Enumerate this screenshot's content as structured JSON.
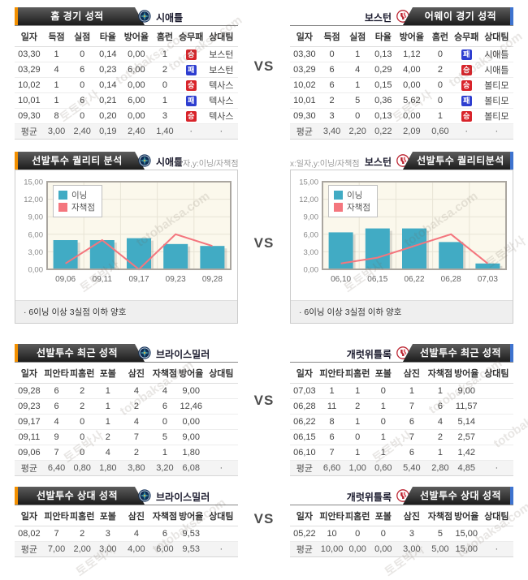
{
  "page": {
    "vs": "VS"
  },
  "watermark": {
    "kr": "토토박사",
    "en": "totobaksa.com"
  },
  "badges": {
    "win": "승",
    "loss": "패"
  },
  "avg_label": "평균",
  "stat_headers": [
    "일자",
    "득점",
    "실점",
    "타율",
    "방어율",
    "홈런",
    "승무패",
    "상대팀"
  ],
  "pitcher_headers": [
    "일자",
    "피안타",
    "피홈런",
    "포볼",
    "삼진",
    "자책점",
    "방어율",
    "상대팀"
  ],
  "colors": {
    "accent_left": "#f39000",
    "accent_right": "#3e73cf",
    "win_badge": "#d8232a",
    "loss_badge": "#2e3ed0",
    "bar": "#41abc4",
    "line": "#f4767e"
  },
  "sections": [
    {
      "left": {
        "title": "홈 경기 성적",
        "team": "시애틀",
        "headers": "stat_headers",
        "rows": [
          [
            "03,30",
            "1",
            "0",
            "0,14",
            "0,00",
            "1",
            "승",
            "보스턴"
          ],
          [
            "03,29",
            "4",
            "6",
            "0,23",
            "6,00",
            "2",
            "패",
            "보스턴"
          ],
          [
            "10,02",
            "1",
            "0",
            "0,14",
            "0,00",
            "0",
            "승",
            "텍사스"
          ],
          [
            "10,01",
            "1",
            "6",
            "0,21",
            "6,00",
            "1",
            "패",
            "텍사스"
          ],
          [
            "09,30",
            "8",
            "0",
            "0,20",
            "0,00",
            "3",
            "승",
            "텍사스"
          ]
        ],
        "avg": [
          "평균",
          "3,00",
          "2,40",
          "0,19",
          "2,40",
          "1,40",
          "·",
          "·"
        ]
      },
      "right": {
        "title": "어웨이 경기 성적",
        "team": "보스턴",
        "headers": "stat_headers",
        "rows": [
          [
            "03,30",
            "0",
            "1",
            "0,13",
            "1,12",
            "0",
            "패",
            "시애틀"
          ],
          [
            "03,29",
            "6",
            "4",
            "0,29",
            "4,00",
            "2",
            "승",
            "시애틀"
          ],
          [
            "10,02",
            "6",
            "1",
            "0,15",
            "0,00",
            "0",
            "승",
            "볼티모"
          ],
          [
            "10,01",
            "2",
            "5",
            "0,36",
            "5,62",
            "0",
            "패",
            "볼티모"
          ],
          [
            "09,30",
            "3",
            "0",
            "0,13",
            "0,00",
            "1",
            "승",
            "볼티모"
          ]
        ],
        "avg": [
          "평균",
          "3,40",
          "2,20",
          "0,22",
          "2,09",
          "0,60",
          "·",
          "·"
        ]
      }
    },
    {
      "left": {
        "title": "선발투수 퀄리티 분석",
        "team": "시애틀",
        "axis_note": "x:일자,y:이닝/자책점",
        "note": "·  6이닝 이상 3실점 이하 양호"
      },
      "right": {
        "title": "선발투수 퀄리티분석",
        "team": "보스턴",
        "axis_note": "x:일자,y:이닝/자책점",
        "note": "·  6이닝 이상 3실점 이하 양호"
      }
    },
    {
      "left": {
        "title": "선발투수 최근 성적",
        "team": "브라이스밀러",
        "headers": "pitcher_headers",
        "rows": [
          [
            "09,28",
            "6",
            "2",
            "1",
            "4",
            "4",
            "9,00",
            ""
          ],
          [
            "09,23",
            "6",
            "2",
            "1",
            "2",
            "6",
            "12,46",
            ""
          ],
          [
            "09,17",
            "4",
            "0",
            "1",
            "4",
            "0",
            "0,00",
            ""
          ],
          [
            "09,11",
            "9",
            "0",
            "2",
            "7",
            "5",
            "9,00",
            ""
          ],
          [
            "09,06",
            "7",
            "0",
            "4",
            "2",
            "1",
            "1,80",
            ""
          ]
        ],
        "avg": [
          "평균",
          "6,40",
          "0,80",
          "1,80",
          "3,80",
          "3,20",
          "6,08",
          "·"
        ]
      },
      "right": {
        "title": "선발투수 최근 성적",
        "team": "개럿위틀록",
        "headers": "pitcher_headers",
        "rows": [
          [
            "07,03",
            "1",
            "1",
            "0",
            "1",
            "1",
            "9,00",
            ""
          ],
          [
            "06,28",
            "11",
            "2",
            "1",
            "7",
            "6",
            "11,57",
            ""
          ],
          [
            "06,22",
            "8",
            "1",
            "0",
            "6",
            "4",
            "5,14",
            ""
          ],
          [
            "06,15",
            "6",
            "0",
            "1",
            "7",
            "2",
            "2,57",
            ""
          ],
          [
            "06,10",
            "7",
            "1",
            "1",
            "6",
            "1",
            "1,42",
            ""
          ]
        ],
        "avg": [
          "평균",
          "6,60",
          "1,00",
          "0,60",
          "5,40",
          "2,80",
          "4,85",
          "·"
        ]
      }
    },
    {
      "left": {
        "title": "선발투수 상대 성적",
        "team": "브라이스밀러",
        "headers": "pitcher_headers",
        "rows": [
          [
            "08,02",
            "7",
            "2",
            "3",
            "4",
            "6",
            "9,53",
            ""
          ]
        ],
        "avg": [
          "평균",
          "7,00",
          "2,00",
          "3,00",
          "4,00",
          "6,00",
          "9,53",
          "·"
        ]
      },
      "right": {
        "title": "선발투수 상대 성적",
        "team": "개럿위틀록",
        "headers": "pitcher_headers",
        "rows": [
          [
            "05,22",
            "10",
            "0",
            "0",
            "3",
            "5",
            "15,00",
            ""
          ]
        ],
        "avg": [
          "평균",
          "10,00",
          "0,00",
          "0,00",
          "3,00",
          "5,00",
          "15,00",
          "·"
        ]
      }
    }
  ],
  "chart_data": [
    {
      "type": "bar",
      "title": "선발투수 퀄리티 분석 (시애틀)",
      "categories": [
        "09,06",
        "09,11",
        "09,17",
        "09,23",
        "09,28"
      ],
      "series": [
        {
          "name": "이닝",
          "kind": "bar",
          "color": "#41abc4",
          "values": [
            5,
            5,
            5.33,
            4.33,
            4
          ]
        },
        {
          "name": "자책점",
          "kind": "line",
          "color": "#f4767e",
          "values": [
            1,
            5,
            0,
            6,
            4
          ]
        }
      ],
      "ylim": [
        0,
        15
      ],
      "ytick_labels": [
        "0,00",
        "3,00",
        "6,00",
        "9,00",
        "12,00",
        "15,00"
      ],
      "grid": true,
      "legend_position": "top-left",
      "note": "·  6이닝 이상 3실점 이하 양호"
    },
    {
      "type": "bar",
      "title": "선발투수 퀄리티분석 (보스턴)",
      "categories": [
        "06,10",
        "06,15",
        "06,22",
        "06,28",
        "07,03"
      ],
      "series": [
        {
          "name": "이닝",
          "kind": "bar",
          "color": "#41abc4",
          "values": [
            6.33,
            7,
            7,
            4.67,
            1
          ]
        },
        {
          "name": "자책점",
          "kind": "line",
          "color": "#f4767e",
          "values": [
            1,
            2,
            4,
            6,
            1
          ]
        }
      ],
      "ylim": [
        0,
        15
      ],
      "ytick_labels": [
        "0,00",
        "3,00",
        "6,00",
        "9,00",
        "12,00",
        "15,00"
      ],
      "grid": true,
      "legend_position": "top-left",
      "note": "·  6이닝 이상 3실점 이하 양호"
    }
  ]
}
